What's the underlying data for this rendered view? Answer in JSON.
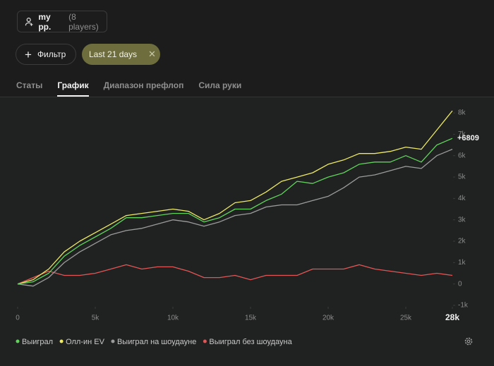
{
  "header": {
    "player": "my pp.",
    "players_count": "(8 players)"
  },
  "filters": {
    "filter_button": "Фильтр",
    "date_chip": "Last 21 days"
  },
  "tabs": {
    "items": [
      "Статы",
      "График",
      "Диапазон префлоп",
      "Сила руки"
    ],
    "active": "График"
  },
  "chart_data": {
    "type": "line",
    "x": [
      0,
      1000,
      2000,
      3000,
      4000,
      5000,
      6000,
      7000,
      8000,
      9000,
      10000,
      11000,
      12000,
      13000,
      14000,
      15000,
      16000,
      17000,
      18000,
      19000,
      20000,
      21000,
      22000,
      23000,
      24000,
      25000,
      26000,
      27000,
      28000
    ],
    "xlim": [
      0,
      28000
    ],
    "xticks": [
      0,
      {
        "value": 5000,
        "label": "5k"
      },
      {
        "value": 10000,
        "label": "10k"
      },
      {
        "value": 15000,
        "label": "15k"
      },
      {
        "value": 20000,
        "label": "20k"
      },
      {
        "value": 25000,
        "label": "25k"
      },
      {
        "value": 28000,
        "label": "28k"
      }
    ],
    "ylim": [
      -1000,
      8300
    ],
    "yticks": [
      {
        "value": -1000,
        "label": "-1k"
      },
      0,
      {
        "value": 1000,
        "label": "1k"
      },
      {
        "value": 2000,
        "label": "2k"
      },
      {
        "value": 3000,
        "label": "3k"
      },
      {
        "value": 4000,
        "label": "4k"
      },
      {
        "value": 5000,
        "label": "5k"
      },
      {
        "value": 6000,
        "label": "6k"
      },
      {
        "value": 7000,
        "label": "7k"
      },
      {
        "value": 8000,
        "label": "8k"
      }
    ],
    "grid": false,
    "series": [
      {
        "name": "Выиграл",
        "color": "#5fd35a",
        "values": [
          0,
          100,
          500,
          1300,
          1800,
          2200,
          2600,
          3100,
          3100,
          3200,
          3300,
          3300,
          2900,
          3100,
          3500,
          3500,
          3900,
          4200,
          4800,
          4700,
          5000,
          5200,
          5600,
          5700,
          5700,
          6000,
          5700,
          6500,
          6809
        ],
        "value_labels": [
          null,
          null,
          null,
          null,
          null,
          null,
          null,
          null,
          null,
          null,
          null,
          null,
          null,
          null,
          null,
          null,
          null,
          null,
          null,
          null,
          null,
          null,
          null,
          null,
          null,
          null,
          null,
          null,
          "+6809"
        ]
      },
      {
        "name": "Олл-ин EV",
        "color": "#eeea62",
        "values": [
          0,
          200,
          700,
          1500,
          2000,
          2400,
          2800,
          3200,
          3300,
          3400,
          3500,
          3400,
          3000,
          3300,
          3800,
          3900,
          4300,
          4800,
          5000,
          5200,
          5600,
          5800,
          6100,
          6100,
          6200,
          6400,
          6300,
          7200,
          8100
        ]
      },
      {
        "name": "Выиграл на шоудауне",
        "color": "#9b9b9b",
        "values": [
          0,
          -100,
          300,
          1000,
          1500,
          1900,
          2300,
          2500,
          2600,
          2800,
          3000,
          2900,
          2700,
          2900,
          3200,
          3300,
          3600,
          3700,
          3700,
          3900,
          4100,
          4500,
          5000,
          5100,
          5300,
          5500,
          5400,
          6000,
          6300
        ]
      },
      {
        "name": "Выиграл без шоудауна",
        "color": "#e05555",
        "values": [
          0,
          300,
          600,
          400,
          400,
          500,
          700,
          900,
          700,
          800,
          800,
          600,
          300,
          300,
          400,
          200,
          400,
          400,
          400,
          700,
          700,
          700,
          900,
          700,
          600,
          500,
          400,
          500,
          400
        ]
      }
    ]
  }
}
